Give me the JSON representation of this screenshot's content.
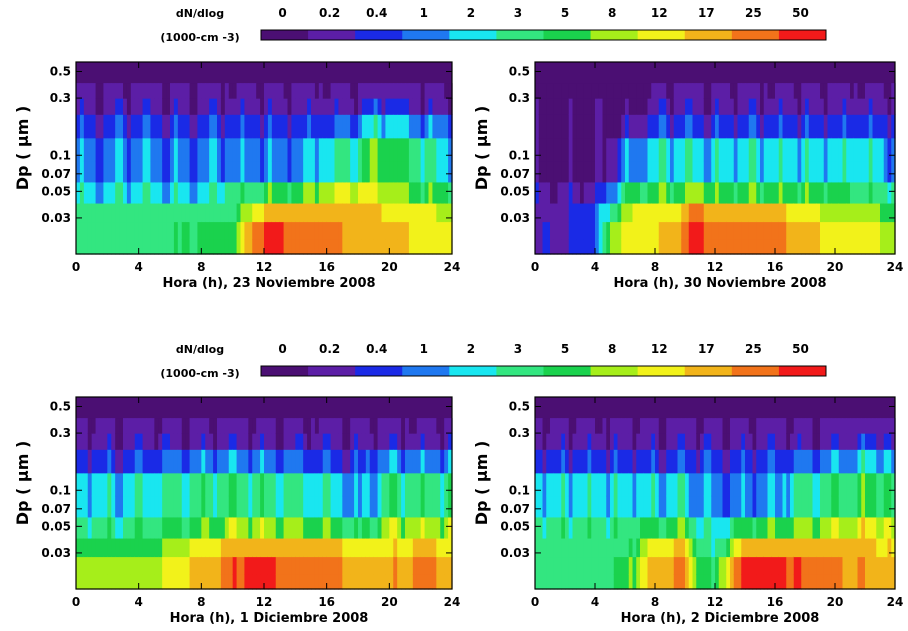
{
  "colorbar": {
    "title_line1": "dN/dlog",
    "title_line2": "(1000-cm -3)",
    "levels": [
      "0",
      "0.2",
      "0.4",
      "1",
      "2",
      "3",
      "5",
      "8",
      "12",
      "17",
      "25",
      "50"
    ],
    "colors": [
      "#4b0f73",
      "#5c1ea6",
      "#1a2ae6",
      "#1f78f0",
      "#19e6f0",
      "#33e680",
      "#1ad24d",
      "#a6ee1a",
      "#f2f21a",
      "#f2b41a",
      "#f2731a",
      "#f21a1a"
    ]
  },
  "chart_data": [
    {
      "type": "heatmap",
      "xlabel": "Hora (h), 23 Noviembre 2008",
      "ylabel": "Dp ( μm )",
      "x_ticks": [
        "0",
        "4",
        "8",
        "12",
        "16",
        "20",
        "24"
      ],
      "y_ticks": [
        "0.5",
        "0.3",
        "0.1",
        "0.07",
        "0.05",
        "0.03"
      ],
      "xlim": [
        0,
        24
      ],
      "ylim": [
        0.015,
        0.6
      ],
      "y_scale": "log",
      "profile": [
        {
          "t": 0,
          "lv": [
            5,
            5,
            4,
            3,
            2,
            1
          ]
        },
        {
          "t": 2,
          "lv": [
            5,
            5,
            4,
            3,
            2,
            1
          ]
        },
        {
          "t": 4,
          "lv": [
            5,
            5,
            4,
            3,
            2,
            1
          ]
        },
        {
          "t": 6,
          "lv": [
            5,
            5,
            4,
            3,
            2,
            1
          ]
        },
        {
          "t": 8,
          "lv": [
            6,
            5,
            4,
            3,
            2,
            1
          ]
        },
        {
          "t": 10,
          "lv": [
            6,
            5,
            5,
            3,
            2,
            1
          ]
        },
        {
          "t": 11,
          "lv": [
            9,
            7,
            5,
            3,
            2,
            1
          ]
        },
        {
          "t": 12,
          "lv": [
            11,
            9,
            6,
            3,
            2,
            1
          ]
        },
        {
          "t": 13,
          "lv": [
            11,
            9,
            6,
            3,
            2,
            1
          ]
        },
        {
          "t": 14,
          "lv": [
            10,
            9,
            6,
            3,
            2,
            1
          ]
        },
        {
          "t": 16,
          "lv": [
            10,
            9,
            7,
            4,
            2,
            1
          ]
        },
        {
          "t": 18,
          "lv": [
            9,
            9,
            8,
            5,
            3,
            1
          ]
        },
        {
          "t": 19,
          "lv": [
            9,
            9,
            8,
            7,
            4,
            2
          ]
        },
        {
          "t": 20,
          "lv": [
            9,
            8,
            7,
            6,
            4,
            2
          ]
        },
        {
          "t": 22,
          "lv": [
            8,
            8,
            6,
            5,
            3,
            1
          ]
        },
        {
          "t": 24,
          "lv": [
            8,
            7,
            6,
            4,
            3,
            1
          ]
        }
      ]
    },
    {
      "type": "heatmap",
      "xlabel": "Hora (h), 30 Noviembre 2008",
      "ylabel": "Dp ( μm )",
      "x_ticks": [
        "0",
        "4",
        "8",
        "12",
        "16",
        "20",
        "24"
      ],
      "y_ticks": [
        "0.5",
        "0.3",
        "0.1",
        "0.07",
        "0.05",
        "0.03"
      ],
      "xlim": [
        0,
        24
      ],
      "ylim": [
        0.015,
        0.6
      ],
      "y_scale": "log",
      "profile": [
        {
          "t": 0,
          "lv": [
            1,
            1,
            1,
            0,
            0,
            0
          ]
        },
        {
          "t": 1,
          "lv": [
            2,
            1,
            1,
            0,
            0,
            0
          ]
        },
        {
          "t": 2,
          "lv": [
            1,
            1,
            1,
            0,
            0,
            0
          ]
        },
        {
          "t": 3,
          "lv": [
            2,
            2,
            1,
            0,
            0,
            0
          ]
        },
        {
          "t": 4,
          "lv": [
            2,
            2,
            1,
            0,
            0,
            0
          ]
        },
        {
          "t": 5,
          "lv": [
            7,
            5,
            3,
            1,
            0,
            0
          ]
        },
        {
          "t": 6,
          "lv": [
            8,
            7,
            5,
            3,
            1,
            0
          ]
        },
        {
          "t": 7,
          "lv": [
            8,
            8,
            6,
            3,
            1,
            0
          ]
        },
        {
          "t": 8,
          "lv": [
            8,
            8,
            6,
            4,
            2,
            1
          ]
        },
        {
          "t": 9,
          "lv": [
            9,
            8,
            6,
            4,
            2,
            1
          ]
        },
        {
          "t": 10,
          "lv": [
            10,
            9,
            6,
            4,
            2,
            1
          ]
        },
        {
          "t": 11,
          "lv": [
            11,
            10,
            7,
            4,
            2,
            1
          ]
        },
        {
          "t": 12,
          "lv": [
            10,
            9,
            6,
            4,
            2,
            1
          ]
        },
        {
          "t": 14,
          "lv": [
            10,
            9,
            6,
            4,
            2,
            1
          ]
        },
        {
          "t": 16,
          "lv": [
            10,
            9,
            6,
            4,
            2,
            1
          ]
        },
        {
          "t": 18,
          "lv": [
            9,
            8,
            6,
            4,
            2,
            1
          ]
        },
        {
          "t": 20,
          "lv": [
            8,
            7,
            6,
            4,
            2,
            1
          ]
        },
        {
          "t": 22,
          "lv": [
            8,
            7,
            5,
            4,
            2,
            1
          ]
        },
        {
          "t": 24,
          "lv": [
            7,
            6,
            5,
            3,
            2,
            1
          ]
        }
      ]
    },
    {
      "type": "heatmap",
      "xlabel": "Hora (h), 1 Diciembre 2008",
      "ylabel": "Dp ( μm )",
      "x_ticks": [
        "0",
        "4",
        "8",
        "12",
        "16",
        "20",
        "24"
      ],
      "y_ticks": [
        "0.5",
        "0.3",
        "0.1",
        "0.07",
        "0.05",
        "0.03"
      ],
      "xlim": [
        0,
        24
      ],
      "ylim": [
        0.015,
        0.6
      ],
      "y_scale": "log",
      "profile": [
        {
          "t": 0,
          "lv": [
            7,
            6,
            5,
            4,
            2,
            1
          ]
        },
        {
          "t": 2,
          "lv": [
            7,
            6,
            5,
            4,
            2,
            1
          ]
        },
        {
          "t": 4,
          "lv": [
            7,
            6,
            5,
            4,
            2,
            1
          ]
        },
        {
          "t": 6,
          "lv": [
            8,
            7,
            6,
            5,
            3,
            1
          ]
        },
        {
          "t": 8,
          "lv": [
            9,
            8,
            6,
            5,
            3,
            1
          ]
        },
        {
          "t": 10,
          "lv": [
            10,
            9,
            7,
            5,
            3,
            1
          ]
        },
        {
          "t": 11,
          "lv": [
            11,
            9,
            7,
            5,
            3,
            1
          ]
        },
        {
          "t": 12,
          "lv": [
            11,
            9,
            7,
            5,
            3,
            1
          ]
        },
        {
          "t": 14,
          "lv": [
            10,
            9,
            7,
            5,
            3,
            1
          ]
        },
        {
          "t": 16,
          "lv": [
            10,
            9,
            6,
            4,
            2,
            1
          ]
        },
        {
          "t": 18,
          "lv": [
            9,
            8,
            5,
            3,
            2,
            1
          ]
        },
        {
          "t": 20,
          "lv": [
            9,
            8,
            7,
            5,
            3,
            1
          ]
        },
        {
          "t": 22,
          "lv": [
            10,
            9,
            7,
            5,
            3,
            1
          ]
        },
        {
          "t": 24,
          "lv": [
            9,
            8,
            7,
            5,
            3,
            1
          ]
        }
      ]
    },
    {
      "type": "heatmap",
      "xlabel": "Hora (h), 2 Diciembre 2008",
      "ylabel": "Dp ( μm )",
      "x_ticks": [
        "0",
        "4",
        "8",
        "12",
        "16",
        "20",
        "24"
      ],
      "y_ticks": [
        "0.5",
        "0.3",
        "0.1",
        "0.07",
        "0.05",
        "0.03"
      ],
      "xlim": [
        0,
        24
      ],
      "ylim": [
        0.015,
        0.6
      ],
      "y_scale": "log",
      "profile": [
        {
          "t": 0,
          "lv": [
            5,
            5,
            5,
            4,
            2,
            1
          ]
        },
        {
          "t": 2,
          "lv": [
            5,
            5,
            5,
            4,
            2,
            1
          ]
        },
        {
          "t": 4,
          "lv": [
            5,
            5,
            5,
            4,
            2,
            1
          ]
        },
        {
          "t": 6,
          "lv": [
            6,
            5,
            5,
            4,
            2,
            1
          ]
        },
        {
          "t": 8,
          "lv": [
            9,
            8,
            6,
            4,
            2,
            1
          ]
        },
        {
          "t": 10,
          "lv": [
            10,
            9,
            6,
            4,
            2,
            1
          ]
        },
        {
          "t": 11,
          "lv": [
            6,
            5,
            4,
            3,
            2,
            1
          ]
        },
        {
          "t": 12,
          "lv": [
            5,
            4,
            4,
            3,
            2,
            1
          ]
        },
        {
          "t": 13,
          "lv": [
            9,
            7,
            5,
            3,
            2,
            1
          ]
        },
        {
          "t": 14,
          "lv": [
            11,
            9,
            6,
            3,
            2,
            1
          ]
        },
        {
          "t": 16,
          "lv": [
            11,
            9,
            6,
            3,
            2,
            1
          ]
        },
        {
          "t": 18,
          "lv": [
            10,
            9,
            7,
            5,
            3,
            1
          ]
        },
        {
          "t": 20,
          "lv": [
            10,
            9,
            7,
            5,
            3,
            1
          ]
        },
        {
          "t": 22,
          "lv": [
            9,
            9,
            8,
            6,
            4,
            2
          ]
        },
        {
          "t": 24,
          "lv": [
            9,
            8,
            7,
            5,
            3,
            1
          ]
        }
      ]
    }
  ]
}
